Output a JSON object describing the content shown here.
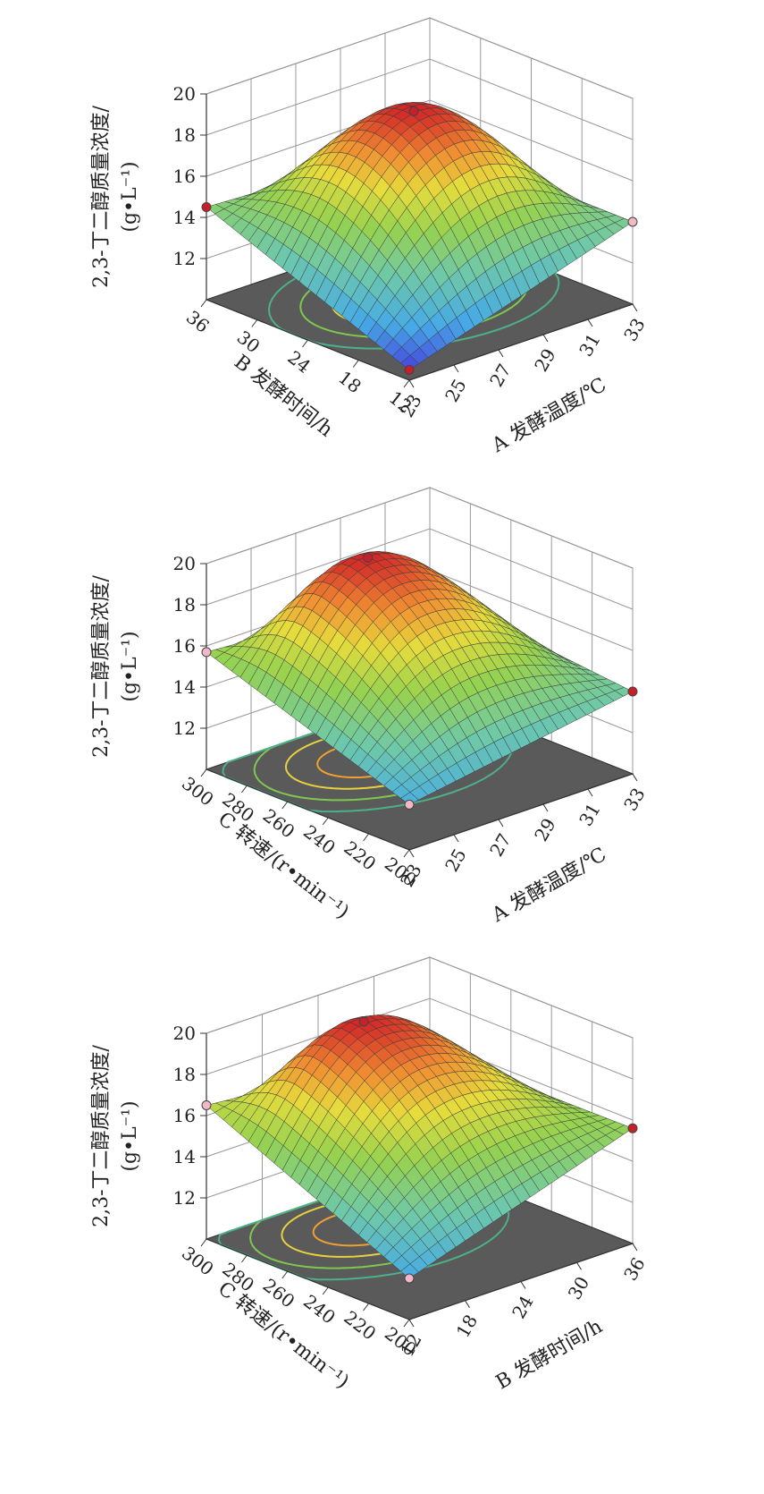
{
  "chart_data": [
    {
      "type": "surface",
      "zlabel_line1": "2,3-丁二醇质量浓度/",
      "zlabel_line2": "(g•L⁻¹)",
      "zticks": [
        12,
        14,
        16,
        18,
        20
      ],
      "zlim": [
        10,
        20
      ],
      "a_axis": {
        "label": "A 发酵温度/℃",
        "ticks": [
          "23",
          "25",
          "27",
          "29",
          "31",
          "33"
        ],
        "range": [
          23,
          33
        ]
      },
      "b_axis": {
        "label": "B 发酵时间/h",
        "ticks": [
          "12",
          "18",
          "24",
          "30",
          "36"
        ],
        "range": [
          12,
          36
        ]
      },
      "grid": true,
      "corner_values": {
        "front": 10.5,
        "left": 14.5,
        "right": 14.0,
        "back": 14.0
      },
      "peak_value": 19.0,
      "peak_position": [
        0.52,
        0.55
      ],
      "shape": "saddle",
      "marker_colors": {
        "front": "#c8202a",
        "left": "#c8202a",
        "right": "#f2b8c6"
      }
    },
    {
      "type": "surface",
      "zlabel_line1": "2,3-丁二醇质量浓度/",
      "zlabel_line2": "(g•L⁻¹)",
      "zticks": [
        12,
        14,
        16,
        18,
        20
      ],
      "zlim": [
        10,
        20
      ],
      "a_axis": {
        "label": "A 发酵温度/℃",
        "ticks": [
          "23",
          "25",
          "27",
          "29",
          "31",
          "33"
        ],
        "range": [
          23,
          33
        ]
      },
      "b_axis": {
        "label": "C 转速/(r•min⁻¹)",
        "ticks": [
          "200",
          "220",
          "240",
          "260",
          "280",
          "300"
        ],
        "range": [
          200,
          300
        ]
      },
      "grid": true,
      "corner_values": {
        "front": 12.2,
        "left": 15.7,
        "right": 14.0,
        "back": 15.0
      },
      "peak_value": 19.8,
      "peak_position": [
        0.45,
        0.7
      ],
      "shape": "dome",
      "marker_colors": {
        "front": "#f2b8c6",
        "left": "#f2b8c6",
        "right": "#c8202a"
      }
    },
    {
      "type": "surface",
      "zlabel_line1": "2,3-丁二醇质量浓度/",
      "zlabel_line2": "(g•L⁻¹)",
      "zticks": [
        12,
        14,
        16,
        18,
        20
      ],
      "zlim": [
        10,
        20
      ],
      "a_axis": {
        "label": "B 发酵时间/h",
        "ticks": [
          "12",
          "18",
          "24",
          "30",
          "36"
        ],
        "range": [
          12,
          36
        ]
      },
      "b_axis": {
        "label": "C 转速/(r•min⁻¹)",
        "ticks": [
          "200",
          "220",
          "240",
          "260",
          "280",
          "300"
        ],
        "range": [
          200,
          300
        ]
      },
      "grid": true,
      "corner_values": {
        "front": 12.0,
        "left": 16.5,
        "right": 15.6,
        "back": 15.5
      },
      "peak_value": 20.0,
      "peak_position": [
        0.45,
        0.72
      ],
      "shape": "dome",
      "marker_colors": {
        "front": "#f2b8c6",
        "left": "#f2b8c6",
        "right": "#c8202a"
      }
    }
  ]
}
